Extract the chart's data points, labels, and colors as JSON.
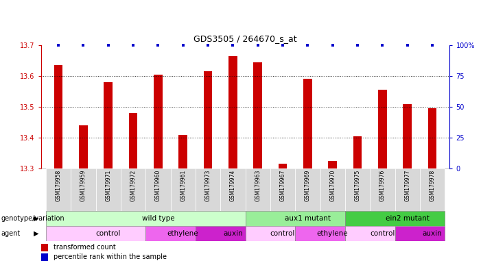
{
  "title": "GDS3505 / 264670_s_at",
  "samples": [
    "GSM179958",
    "GSM179959",
    "GSM179971",
    "GSM179972",
    "GSM179960",
    "GSM179961",
    "GSM179973",
    "GSM179974",
    "GSM179963",
    "GSM179967",
    "GSM179969",
    "GSM179970",
    "GSM179975",
    "GSM179976",
    "GSM179977",
    "GSM179978"
  ],
  "bar_values": [
    13.635,
    13.44,
    13.58,
    13.48,
    13.605,
    13.41,
    13.615,
    13.665,
    13.645,
    13.315,
    13.59,
    13.325,
    13.405,
    13.555,
    13.51,
    13.495
  ],
  "ylim": [
    13.3,
    13.7
  ],
  "yticks": [
    13.3,
    13.4,
    13.5,
    13.6,
    13.7
  ],
  "right_yticks": [
    0,
    25,
    50,
    75,
    100
  ],
  "right_ytick_labels": [
    "0",
    "25",
    "50",
    "75",
    "100%"
  ],
  "bar_color": "#cc0000",
  "percentile_color": "#0000cc",
  "genotype_groups": [
    {
      "label": "wild type",
      "start": 0,
      "end": 8,
      "color": "#ccffcc"
    },
    {
      "label": "aux1 mutant",
      "start": 8,
      "end": 12,
      "color": "#99ee99"
    },
    {
      "label": "ein2 mutant",
      "start": 12,
      "end": 16,
      "color": "#44cc44"
    }
  ],
  "agent_groups": [
    {
      "label": "control",
      "start": 0,
      "end": 4,
      "color": "#ffccff"
    },
    {
      "label": "ethylene",
      "start": 4,
      "end": 6,
      "color": "#ee66ee"
    },
    {
      "label": "auxin",
      "start": 6,
      "end": 8,
      "color": "#cc22cc"
    },
    {
      "label": "control",
      "start": 8,
      "end": 10,
      "color": "#ffccff"
    },
    {
      "label": "ethylene",
      "start": 10,
      "end": 12,
      "color": "#ee66ee"
    },
    {
      "label": "control",
      "start": 12,
      "end": 14,
      "color": "#ffccff"
    },
    {
      "label": "auxin",
      "start": 14,
      "end": 16,
      "color": "#cc22cc"
    }
  ],
  "legend_items": [
    {
      "label": "transformed count",
      "color": "#cc0000"
    },
    {
      "label": "percentile rank within the sample",
      "color": "#0000cc"
    }
  ]
}
